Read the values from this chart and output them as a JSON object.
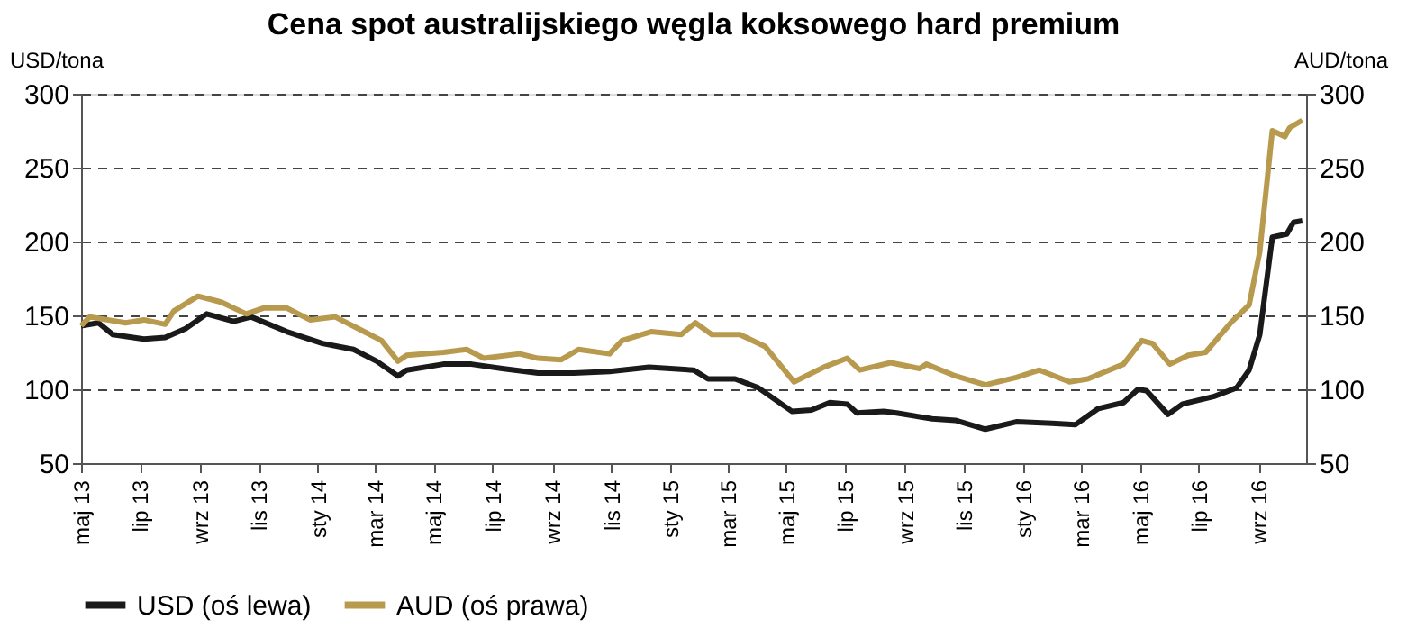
{
  "chart_data": {
    "type": "line",
    "title": "Cena spot australijskiego węgla koksowego hard premium",
    "ylabel": "USD/tona",
    "y2label": "AUD/tona",
    "xlim": [
      "2013-05-01",
      "2016-10-20"
    ],
    "xticks": [
      {
        "value": "2013-05-01",
        "label": "maj 13"
      },
      {
        "value": "2013-07-01",
        "label": "lip 13"
      },
      {
        "value": "2013-09-01",
        "label": "wrz 13"
      },
      {
        "value": "2013-11-01",
        "label": "lis 13"
      },
      {
        "value": "2014-01-01",
        "label": "sty 14"
      },
      {
        "value": "2014-03-01",
        "label": "mar 14"
      },
      {
        "value": "2014-05-01",
        "label": "maj 14"
      },
      {
        "value": "2014-07-01",
        "label": "lip 14"
      },
      {
        "value": "2014-09-01",
        "label": "wrz 14"
      },
      {
        "value": "2014-11-01",
        "label": "lis 14"
      },
      {
        "value": "2015-01-01",
        "label": "sty 15"
      },
      {
        "value": "2015-03-01",
        "label": "mar 15"
      },
      {
        "value": "2015-05-01",
        "label": "maj 15"
      },
      {
        "value": "2015-07-01",
        "label": "lip 15"
      },
      {
        "value": "2015-09-01",
        "label": "wrz 15"
      },
      {
        "value": "2015-11-01",
        "label": "lis 15"
      },
      {
        "value": "2016-01-01",
        "label": "sty 16"
      },
      {
        "value": "2016-03-01",
        "label": "mar 16"
      },
      {
        "value": "2016-05-01",
        "label": "maj 16"
      },
      {
        "value": "2016-07-01",
        "label": "lip 16"
      },
      {
        "value": "2016-09-01",
        "label": "wrz 16"
      }
    ],
    "ylim": [
      50,
      300
    ],
    "yticks": [
      50,
      100,
      150,
      200,
      250,
      300
    ],
    "y2lim": [
      50,
      300
    ],
    "y2ticks": [
      50,
      100,
      150,
      200,
      250,
      300
    ],
    "grid": "y",
    "legend": "bottom",
    "line_style": "solid",
    "marker": "none",
    "series": [
      {
        "name": "USD (oś lewa)",
        "color": "#1a1a1a",
        "axis": "y",
        "x": [
          "2013-05-01",
          "2013-05-19",
          "2013-06-03",
          "2013-07-05",
          "2013-07-27",
          "2013-08-17",
          "2013-09-08",
          "2013-10-06",
          "2013-10-24",
          "2013-11-30",
          "2014-01-06",
          "2014-02-07",
          "2014-03-03",
          "2014-03-25",
          "2014-04-03",
          "2014-05-11",
          "2014-06-09",
          "2014-07-11",
          "2014-08-17",
          "2014-09-23",
          "2014-10-30",
          "2014-12-10",
          "2015-01-25",
          "2015-02-09",
          "2015-03-09",
          "2015-04-02",
          "2015-05-07",
          "2015-05-27",
          "2015-06-15",
          "2015-07-03",
          "2015-07-13",
          "2015-08-10",
          "2015-08-23",
          "2015-09-29",
          "2015-10-23",
          "2015-11-23",
          "2015-12-25",
          "2016-01-31",
          "2016-02-24",
          "2016-03-19",
          "2016-04-14",
          "2016-04-29",
          "2016-05-08",
          "2016-05-30",
          "2016-06-14",
          "2016-07-16",
          "2016-08-09",
          "2016-08-22",
          "2016-09-02",
          "2016-09-15",
          "2016-09-30",
          "2016-10-07",
          "2016-10-16"
        ],
        "values": [
          143,
          145,
          137,
          134,
          135,
          141,
          151,
          146,
          149,
          139,
          131,
          127,
          119,
          109,
          113,
          117,
          117,
          114,
          111,
          111,
          112,
          115,
          113,
          107,
          107,
          101,
          85,
          86,
          91,
          90,
          84,
          85,
          84,
          80,
          79,
          73,
          78,
          77,
          76,
          87,
          91,
          100,
          99,
          83,
          90,
          95,
          101,
          113,
          137,
          203,
          205,
          213,
          214
        ]
      },
      {
        "name": "AUD (oś prawa)",
        "color": "#b89a4e",
        "axis": "y2",
        "x": [
          "2013-05-01",
          "2013-05-10",
          "2013-06-16",
          "2013-07-05",
          "2013-07-27",
          "2013-08-05",
          "2013-08-30",
          "2013-09-23",
          "2013-10-19",
          "2013-11-06",
          "2013-11-30",
          "2013-12-24",
          "2014-01-19",
          "2014-02-18",
          "2014-03-08",
          "2014-03-25",
          "2014-04-03",
          "2014-05-11",
          "2014-06-04",
          "2014-06-22",
          "2014-07-29",
          "2014-08-17",
          "2014-09-10",
          "2014-09-28",
          "2014-10-30",
          "2014-11-12",
          "2014-12-12",
          "2015-01-12",
          "2015-01-27",
          "2015-02-13",
          "2015-03-14",
          "2015-04-09",
          "2015-05-09",
          "2015-06-09",
          "2015-07-03",
          "2015-07-16",
          "2015-08-17",
          "2015-09-16",
          "2015-09-23",
          "2015-10-23",
          "2015-11-23",
          "2015-12-25",
          "2016-01-18",
          "2016-02-18",
          "2016-03-08",
          "2016-04-14",
          "2016-05-03",
          "2016-05-14",
          "2016-06-01",
          "2016-06-20",
          "2016-07-08",
          "2016-08-03",
          "2016-08-22",
          "2016-09-02",
          "2016-09-15",
          "2016-09-28",
          "2016-10-03",
          "2016-10-16"
        ],
        "values": [
          143,
          149,
          145,
          147,
          144,
          153,
          163,
          159,
          151,
          155,
          155,
          147,
          149,
          139,
          133,
          119,
          123,
          125,
          127,
          121,
          124,
          121,
          120,
          127,
          124,
          133,
          139,
          137,
          145,
          137,
          137,
          129,
          105,
          115,
          121,
          113,
          118,
          114,
          117,
          109,
          103,
          108,
          113,
          105,
          107,
          117,
          133,
          131,
          117,
          123,
          125,
          145,
          157,
          193,
          275,
          271,
          277,
          282
        ]
      }
    ]
  }
}
